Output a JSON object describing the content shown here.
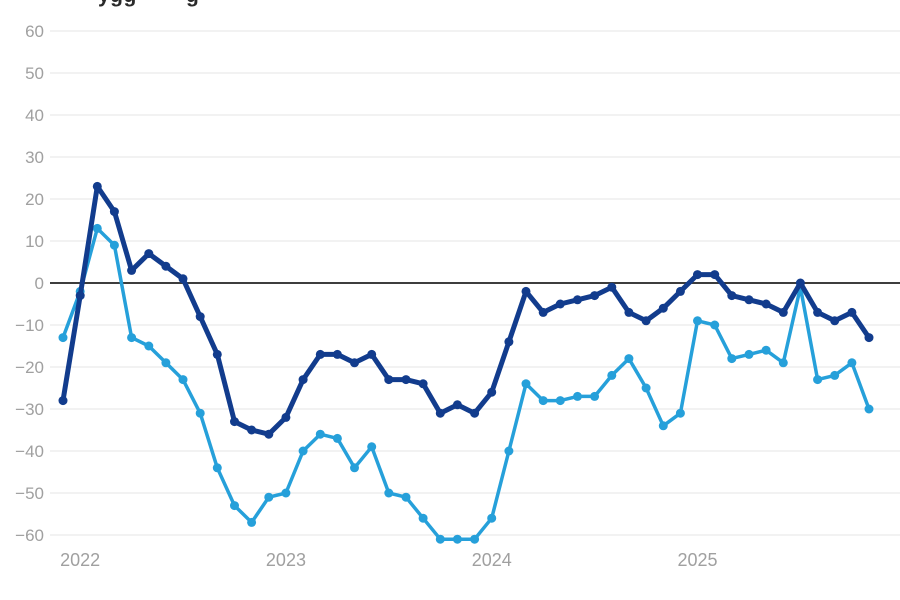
{
  "title_fragments": {
    "left": "ygg",
    "right": "g"
  },
  "colors": {
    "dark_series": "#123C8D",
    "light_series": "#26A0DA",
    "grid_line": "#e4e4e4",
    "zero_line": "#3d3d3d",
    "axis_label": "#a0a0a0",
    "background": "#ffffff"
  },
  "chart_data": {
    "type": "line",
    "x": [
      "2022-01",
      "2022-02",
      "2022-03",
      "2022-04",
      "2022-05",
      "2022-06",
      "2022-07",
      "2022-08",
      "2022-09",
      "2022-10",
      "2022-11",
      "2022-12",
      "2023-01",
      "2023-02",
      "2023-03",
      "2023-04",
      "2023-05",
      "2023-06",
      "2023-07",
      "2023-08",
      "2023-09",
      "2023-10",
      "2023-11",
      "2023-12",
      "2024-01",
      "2024-02",
      "2024-03",
      "2024-04",
      "2024-05",
      "2024-06",
      "2024-07",
      "2024-08",
      "2024-09",
      "2024-10",
      "2024-11",
      "2024-12",
      "2025-01",
      "2025-02",
      "2025-03",
      "2025-04",
      "2025-05",
      "2025-06",
      "2025-07",
      "2025-08",
      "2025-09",
      "2025-10",
      "2025-11",
      "2025-12"
    ],
    "series": [
      {
        "name": "light-blue-series",
        "color": "#26A0DA",
        "values": [
          -13,
          -2,
          13,
          9,
          -13,
          -15,
          -19,
          -23,
          -31,
          -44,
          -53,
          -57,
          -51,
          -50,
          -40,
          -36,
          -37,
          -44,
          -39,
          -50,
          -51,
          -56,
          -61,
          -61,
          -61,
          -56,
          -40,
          -24,
          -28,
          -28,
          -27,
          -27,
          -22,
          -18,
          -25,
          -34,
          -31,
          -9,
          -10,
          -18,
          -17,
          -16,
          -19,
          -1,
          -23,
          -22,
          -19,
          -30
        ]
      },
      {
        "name": "dark-blue-series",
        "color": "#123C8D",
        "values": [
          -28,
          -3,
          23,
          17,
          3,
          7,
          4,
          1,
          -8,
          -17,
          -33,
          -35,
          -36,
          -32,
          -23,
          -17,
          -17,
          -19,
          -17,
          -23,
          -23,
          -24,
          -31,
          -29,
          -31,
          -26,
          -14,
          -2,
          -7,
          -5,
          -4,
          -3,
          -1,
          -7,
          -9,
          -6,
          -2,
          2,
          2,
          -3,
          -4,
          -5,
          -7,
          0,
          -7,
          -9,
          -7,
          -13
        ]
      }
    ],
    "x_tick_labels": [
      "2022",
      "2023",
      "2024",
      "2025"
    ],
    "y_ticks": [
      60,
      50,
      40,
      30,
      20,
      10,
      0,
      -10,
      -20,
      -30,
      -40,
      -50,
      -60
    ],
    "ylim": [
      -60,
      60
    ],
    "grid": "horizontal",
    "zero_line": true,
    "legend": "none",
    "markers": true
  }
}
